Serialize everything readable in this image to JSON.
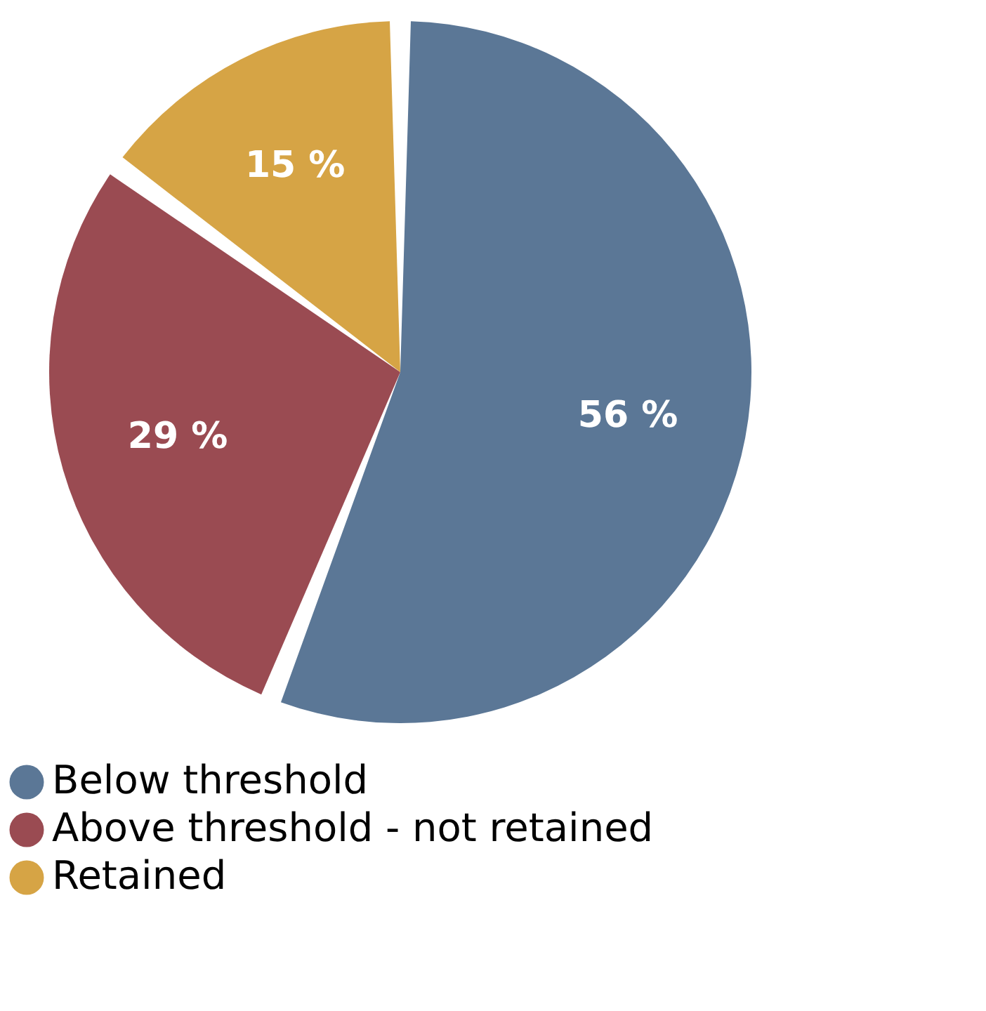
{
  "chart_data": {
    "type": "pie",
    "categories": [
      "Below threshold",
      "Above threshold - not retained",
      "Retained"
    ],
    "values": [
      56,
      29,
      15
    ],
    "colors": [
      "#5b7796",
      "#9a4b52",
      "#d6a445"
    ],
    "value_labels": [
      "56 %",
      "29 %",
      "15 %"
    ],
    "legend": "bottom"
  }
}
